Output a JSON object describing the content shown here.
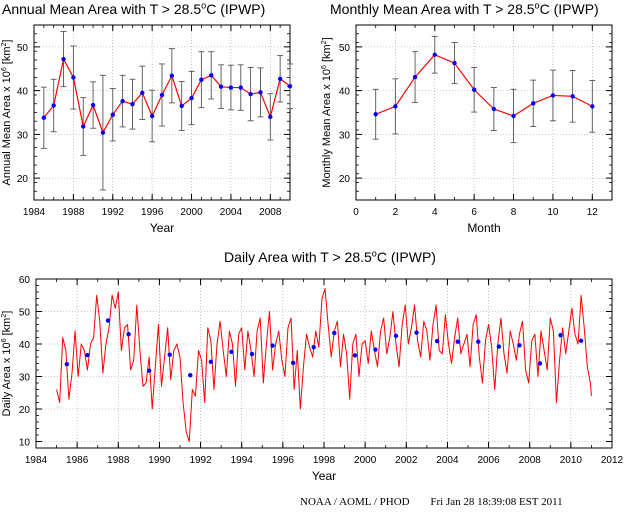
{
  "chart_data": [
    {
      "type": "line",
      "title_pre": "Annual Mean Area with T > 28.5",
      "title_sup": "o",
      "title_post": "C (IPWP)",
      "xlabel": "Year",
      "ylabel_pre": "Annual Mean Area x 10",
      "ylabel_sup": "6",
      "ylabel_post": " [km",
      "ylabel_sup2": "2",
      "ylabel_end": "]",
      "xlim": [
        1984,
        2010
      ],
      "ylim": [
        15,
        55
      ],
      "xticks": [
        1984,
        1988,
        1992,
        1996,
        2000,
        2004,
        2008
      ],
      "yticks": [
        20,
        30,
        40,
        50
      ],
      "grid": true,
      "color": "#ff0000",
      "marker_color": "#0000ff",
      "errorbar_color": "#555555",
      "x": [
        1985,
        1986,
        1987,
        1988,
        1989,
        1990,
        1991,
        1992,
        1993,
        1994,
        1995,
        1996,
        1997,
        1998,
        1999,
        2000,
        2001,
        2002,
        2003,
        2004,
        2005,
        2006,
        2007,
        2008,
        2009,
        2010
      ],
      "values": [
        33.8,
        36.6,
        47.2,
        43.0,
        31.8,
        36.7,
        30.4,
        34.5,
        37.6,
        36.9,
        39.5,
        34.2,
        39.0,
        43.4,
        36.5,
        38.3,
        42.5,
        43.5,
        40.9,
        40.7,
        40.7,
        39.2,
        39.6,
        34.0,
        42.7,
        41.0
      ],
      "error": [
        7.0,
        6.0,
        6.3,
        7.2,
        6.6,
        5.3,
        13.1,
        6.0,
        5.9,
        5.7,
        6.1,
        5.9,
        7.1,
        6.2,
        5.6,
        6.1,
        6.4,
        5.4,
        5.0,
        5.1,
        5.2,
        6.1,
        5.6,
        5.3,
        5.3,
        5.1
      ]
    },
    {
      "type": "line",
      "title_pre": "Monthly Mean Area with T > 28.5",
      "title_sup": "o",
      "title_post": "C (IPWP)",
      "xlabel": "Month",
      "ylabel_pre": "Monthly Mean Area x 10",
      "ylabel_sup": "6",
      "ylabel_post": " [km",
      "ylabel_sup2": "2",
      "ylabel_end": "]",
      "xlim": [
        0,
        13
      ],
      "ylim": [
        15,
        55
      ],
      "xticks": [
        0,
        2,
        4,
        6,
        8,
        10,
        12
      ],
      "yticks": [
        20,
        30,
        40,
        50
      ],
      "grid": true,
      "color": "#ff0000",
      "marker_color": "#0000ff",
      "errorbar_color": "#555555",
      "x": [
        1,
        2,
        3,
        4,
        5,
        6,
        7,
        8,
        9,
        10,
        11,
        12
      ],
      "values": [
        34.6,
        36.4,
        43.1,
        48.2,
        46.3,
        40.2,
        35.8,
        34.2,
        37.1,
        38.9,
        38.7,
        36.4
      ],
      "error": [
        5.7,
        6.3,
        5.8,
        4.2,
        4.7,
        5.1,
        4.9,
        6.1,
        5.3,
        5.8,
        5.9,
        5.9
      ]
    },
    {
      "type": "line",
      "title_pre": "Daily Area with T > 28.5",
      "title_sup": "o",
      "title_post": "C (IPWP)",
      "xlabel": "Year",
      "ylabel_pre": "Daily Area x 10",
      "ylabel_sup": "6",
      "ylabel_post": " [km",
      "ylabel_sup2": "2",
      "ylabel_end": "]",
      "xlim": [
        1984,
        2012
      ],
      "ylim": [
        8,
        60
      ],
      "xticks": [
        1984,
        1986,
        1988,
        1990,
        1992,
        1994,
        1996,
        1998,
        2000,
        2002,
        2004,
        2006,
        2008,
        2010,
        2012
      ],
      "yticks": [
        10,
        20,
        30,
        40,
        50,
        60
      ],
      "grid": true,
      "color": "#ff0000",
      "marker_color": "#0000ff",
      "series_x": [
        1985.0,
        1985.15,
        1985.3,
        1985.45,
        1985.6,
        1985.75,
        1985.9,
        1986.05,
        1986.2,
        1986.35,
        1986.5,
        1986.65,
        1986.8,
        1986.95,
        1987.1,
        1987.25,
        1987.4,
        1987.55,
        1987.7,
        1987.85,
        1988.0,
        1988.15,
        1988.3,
        1988.45,
        1988.6,
        1988.75,
        1988.9,
        1989.05,
        1989.2,
        1989.35,
        1989.5,
        1989.65,
        1989.8,
        1989.95,
        1990.1,
        1990.25,
        1990.4,
        1990.55,
        1990.7,
        1990.85,
        1991.0,
        1991.15,
        1991.3,
        1991.45,
        1991.6,
        1991.75,
        1991.9,
        1992.05,
        1992.2,
        1992.35,
        1992.5,
        1992.65,
        1992.8,
        1992.95,
        1993.1,
        1993.25,
        1993.4,
        1993.55,
        1993.7,
        1993.85,
        1994.0,
        1994.15,
        1994.3,
        1994.45,
        1994.6,
        1994.75,
        1994.9,
        1995.05,
        1995.2,
        1995.35,
        1995.5,
        1995.65,
        1995.8,
        1995.95,
        1996.1,
        1996.25,
        1996.4,
        1996.55,
        1996.7,
        1996.85,
        1997.0,
        1997.15,
        1997.3,
        1997.45,
        1997.6,
        1997.75,
        1997.9,
        1998.05,
        1998.2,
        1998.35,
        1998.5,
        1998.65,
        1998.8,
        1998.95,
        1999.1,
        1999.25,
        1999.4,
        1999.55,
        1999.7,
        1999.85,
        2000.0,
        2000.15,
        2000.3,
        2000.45,
        2000.6,
        2000.75,
        2000.9,
        2001.05,
        2001.2,
        2001.35,
        2001.5,
        2001.65,
        2001.8,
        2001.95,
        2002.1,
        2002.25,
        2002.4,
        2002.55,
        2002.7,
        2002.85,
        2003.0,
        2003.15,
        2003.3,
        2003.45,
        2003.6,
        2003.75,
        2003.9,
        2004.05,
        2004.2,
        2004.35,
        2004.5,
        2004.65,
        2004.8,
        2004.95,
        2005.1,
        2005.25,
        2005.4,
        2005.55,
        2005.7,
        2005.85,
        2006.0,
        2006.15,
        2006.3,
        2006.45,
        2006.6,
        2006.75,
        2006.9,
        2007.05,
        2007.2,
        2007.35,
        2007.5,
        2007.65,
        2007.8,
        2007.95,
        2008.1,
        2008.25,
        2008.4,
        2008.55,
        2008.7,
        2008.85,
        2009.0,
        2009.15,
        2009.3,
        2009.45,
        2009.6,
        2009.75,
        2009.9,
        2010.05,
        2010.2,
        2010.35,
        2010.5,
        2010.65,
        2010.8,
        2010.95,
        2011.0
      ],
      "series_y": [
        26,
        22,
        42,
        38,
        23,
        31,
        44,
        30,
        40,
        38,
        32,
        40,
        42,
        55,
        47,
        31,
        40,
        45,
        55,
        51,
        56,
        38,
        45,
        46,
        32,
        35,
        52,
        38,
        27,
        28,
        36,
        20,
        33,
        46,
        27,
        36,
        45,
        29,
        38,
        40,
        36,
        22,
        13,
        10,
        26,
        24,
        38,
        35,
        22,
        45,
        41,
        26,
        40,
        47,
        38,
        30,
        44,
        40,
        27,
        43,
        45,
        32,
        44,
        38,
        30,
        44,
        48,
        28,
        40,
        50,
        32,
        40,
        44,
        35,
        30,
        45,
        48,
        26,
        38,
        20,
        33,
        43,
        39,
        36,
        44,
        39,
        54,
        57,
        46,
        36,
        44,
        47,
        33,
        43,
        37,
        23,
        40,
        43,
        30,
        40,
        41,
        34,
        44,
        38,
        33,
        44,
        48,
        37,
        42,
        50,
        40,
        33,
        46,
        52,
        40,
        45,
        52,
        41,
        36,
        47,
        44,
        35,
        46,
        52,
        38,
        37,
        49,
        40,
        34,
        42,
        48,
        37,
        40,
        43,
        33,
        46,
        49,
        36,
        28,
        41,
        46,
        39,
        26,
        40,
        48,
        37,
        31,
        44,
        40,
        35,
        43,
        47,
        32,
        28,
        41,
        43,
        30,
        44,
        38,
        32,
        48,
        44,
        22,
        35,
        45,
        37,
        44,
        51,
        43,
        40,
        55,
        45,
        33,
        28,
        24
      ],
      "annual_x": [
        1985.5,
        1986.5,
        1987.5,
        1988.5,
        1989.5,
        1990.5,
        1991.5,
        1992.5,
        1993.5,
        1994.5,
        1995.5,
        1996.5,
        1997.5,
        1998.5,
        1999.5,
        2000.5,
        2001.5,
        2002.5,
        2003.5,
        2004.5,
        2005.5,
        2006.5,
        2007.5,
        2008.5,
        2009.5,
        2010.5
      ],
      "annual_y": [
        33.8,
        36.6,
        47.2,
        43.0,
        31.8,
        36.7,
        30.4,
        34.5,
        37.6,
        36.9,
        39.5,
        34.2,
        39.0,
        43.4,
        36.5,
        38.3,
        42.5,
        43.5,
        40.9,
        40.7,
        40.7,
        39.2,
        39.6,
        34.0,
        42.7,
        41.0
      ]
    }
  ],
  "footer": {
    "source": "NOAA / AOML / PHOD",
    "timestamp": "Fri Jan 28 18:39:08 EST 2011"
  }
}
